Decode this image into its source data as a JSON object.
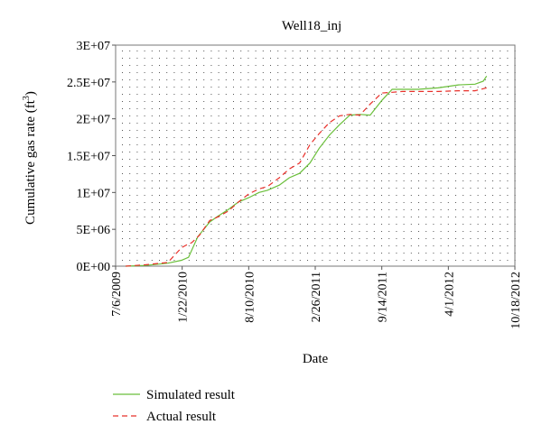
{
  "chart_data": {
    "type": "line",
    "title": "Well18_inj",
    "xlabel": "Date",
    "ylabel": "Cumulative gas rate (ft",
    "ylabel_sup": "3",
    "ylabel_end": ")",
    "x_ticks": [
      "7/6/2009",
      "1/22/2010",
      "8/10/2010",
      "2/26/2011",
      "9/14/2011",
      "4/1/2012",
      "10/18/2012"
    ],
    "y_ticks": [
      "0E+00",
      "5E+06",
      "1E+07",
      "1.5E+07",
      "2E+07",
      "2.5E+07",
      "3E+07"
    ],
    "ylim": [
      0,
      30000000
    ],
    "xlim": [
      "2009-07-06",
      "2012-10-18"
    ],
    "grid": "dotted",
    "legend_position": "bottom-left",
    "series": [
      {
        "name": "Simulated result",
        "color": "#6abf3a",
        "style": "solid",
        "x": [
          "2009-08-05",
          "2009-10-05",
          "2009-12-10",
          "2010-01-20",
          "2010-02-10",
          "2010-03-10",
          "2010-04-15",
          "2010-05-10",
          "2010-06-10",
          "2010-07-10",
          "2010-08-10",
          "2010-09-10",
          "2010-10-05",
          "2010-11-10",
          "2010-12-10",
          "2011-01-10",
          "2011-02-10",
          "2011-03-10",
          "2011-04-10",
          "2011-05-10",
          "2011-06-10",
          "2011-07-10",
          "2011-08-10",
          "2011-09-14",
          "2011-10-15",
          "2011-11-15",
          "2012-01-01",
          "2012-03-01",
          "2012-05-01",
          "2012-06-20",
          "2012-07-15",
          "2012-07-25"
        ],
        "y": [
          0,
          100000,
          400000,
          800000,
          1200000,
          4000000,
          6000000,
          6800000,
          7700000,
          8700000,
          9300000,
          10000000,
          10300000,
          11000000,
          12000000,
          12600000,
          14000000,
          16000000,
          17800000,
          19200000,
          20500000,
          20600000,
          20500000,
          22500000,
          24000000,
          24000000,
          24000000,
          24200000,
          24600000,
          24700000,
          25100000,
          25800000
        ]
      },
      {
        "name": "Actual result",
        "color": "#e8302a",
        "style": "dashed",
        "x": [
          "2009-08-05",
          "2009-10-05",
          "2009-12-10",
          "2010-01-20",
          "2010-02-01",
          "2010-02-20",
          "2010-03-15",
          "2010-04-15",
          "2010-05-10",
          "2010-06-10",
          "2010-07-10",
          "2010-08-10",
          "2010-09-10",
          "2010-10-05",
          "2010-11-10",
          "2010-12-10",
          "2011-01-10",
          "2011-02-10",
          "2011-03-10",
          "2011-04-10",
          "2011-05-10",
          "2011-06-10",
          "2011-07-10",
          "2011-08-10",
          "2011-09-14",
          "2011-10-15",
          "2011-11-15",
          "2012-01-01",
          "2012-03-01",
          "2012-05-01",
          "2012-06-20",
          "2012-07-25"
        ],
        "y": [
          0,
          200000,
          500000,
          2500000,
          2800000,
          3200000,
          4200000,
          6200000,
          6700000,
          7500000,
          8700000,
          9800000,
          10500000,
          10800000,
          12000000,
          13200000,
          14000000,
          16500000,
          18000000,
          19500000,
          20400000,
          20600000,
          20500000,
          22000000,
          23500000,
          23600000,
          23700000,
          23700000,
          23700000,
          23800000,
          23800000,
          24200000
        ]
      }
    ]
  }
}
